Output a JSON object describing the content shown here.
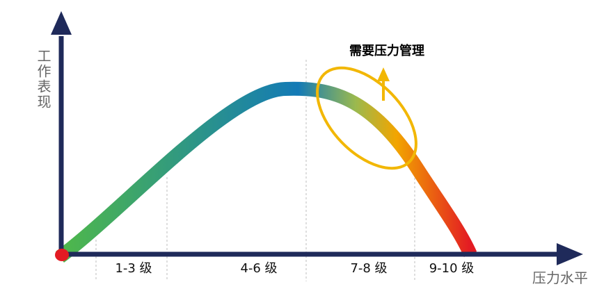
{
  "axes": {
    "y_label": "工作表现",
    "x_label": "压力水平"
  },
  "stages": [
    {
      "label": "1-3 级"
    },
    {
      "label": "4-6 级"
    },
    {
      "label": "7-8 级"
    },
    {
      "label": "9-10 级"
    }
  ],
  "annotation": {
    "text": "需要压力管理"
  },
  "colors": {
    "axis": "#1f2a5a",
    "origin_marker": "#e31b23",
    "curve_start": "#4fb84a",
    "curve_mid": "#137ab6",
    "curve_warn": "#f2a500",
    "curve_end": "#e31b23",
    "highlight_ellipse": "#f2b705",
    "divider": "#c9c9c9"
  }
}
